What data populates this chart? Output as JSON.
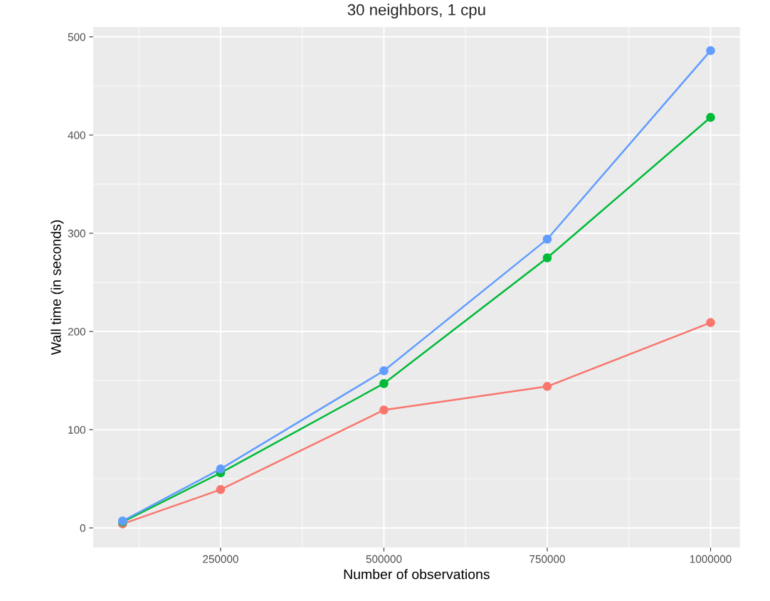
{
  "chart_data": {
    "type": "line",
    "title": "30 neighbors, 1 cpu",
    "xlabel": "Number of observations",
    "ylabel": "Wall time (in seconds)",
    "x": [
      100000,
      250000,
      500000,
      750000,
      1000000
    ],
    "series": [
      {
        "color": "#f8766d",
        "values": [
          4,
          39,
          120,
          144,
          209
        ]
      },
      {
        "color": "#00ba38",
        "values": [
          6,
          56,
          147,
          275,
          418
        ]
      },
      {
        "color": "#619cff",
        "values": [
          7,
          60,
          160,
          294,
          486
        ]
      }
    ],
    "xlim": [
      55000,
      1045000
    ],
    "xticks": [
      250000,
      500000,
      750000,
      1000000
    ],
    "ylim": [
      -20,
      510
    ],
    "yticks": [
      0,
      100,
      200,
      300,
      400,
      500
    ],
    "grid": true,
    "marker": "circle",
    "line_style": "solid"
  }
}
